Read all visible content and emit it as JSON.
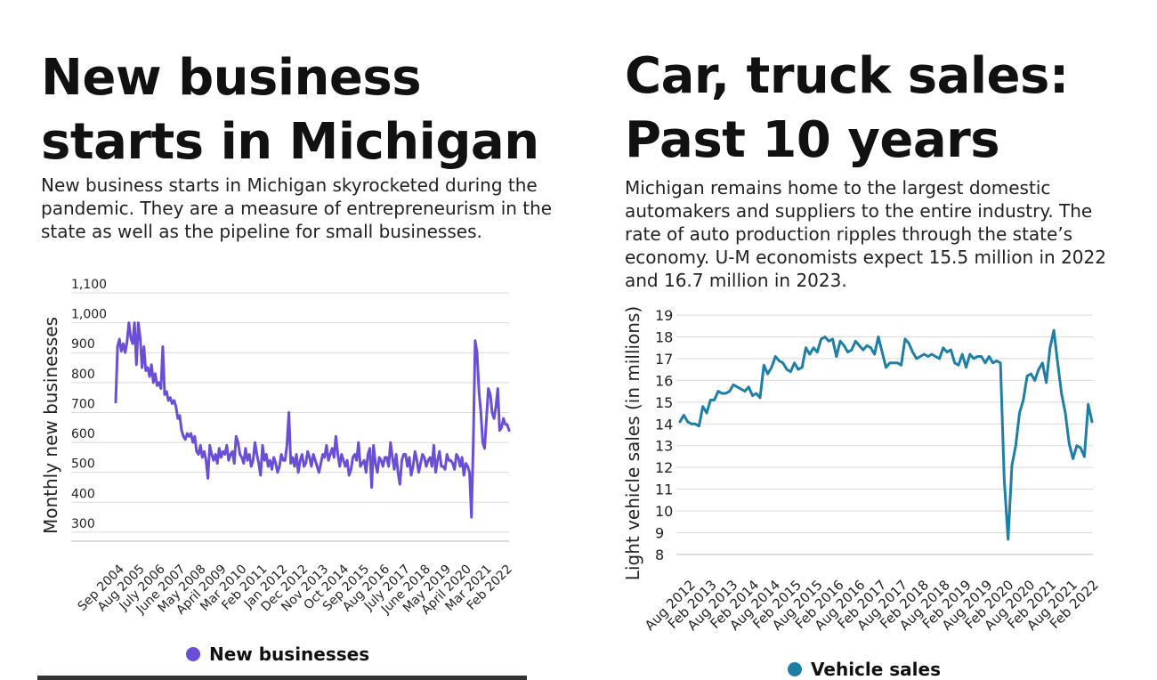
{
  "left": {
    "title": "New business starts in Michigan",
    "subtitle": "New business starts in Michigan skyrocketed during the pandemic. They are a measure of entrepreneurism in the state as well as the pipeline for small businesses.",
    "legend": "New businesses",
    "color": "#6a4fd6",
    "chart_data": {
      "type": "line",
      "title": "New business starts in Michigan",
      "ylabel": "Monthly new businesses",
      "xlabel": "",
      "ylim": [
        270,
        1100
      ],
      "yticks": [
        "300",
        "400",
        "500",
        "600",
        "700",
        "800",
        "900",
        "1,000",
        "1,100"
      ],
      "ytick_values": [
        300,
        400,
        500,
        600,
        700,
        800,
        900,
        1000,
        1100
      ],
      "xticks": [
        "Sep 2004",
        "Aug 2005",
        "July 2006",
        "June 2007",
        "May 2008",
        "April 2009",
        "Mar 2010",
        "Feb 2011",
        "Jan 2012",
        "Dec 2012",
        "Nov 2013",
        "Oct 2014",
        "Sep 2015",
        "Aug 2016",
        "July 2017",
        "June 2018",
        "May 2019",
        "April 2020",
        "Mar 2021",
        "Feb 2022"
      ],
      "series": [
        {
          "name": "New businesses",
          "x_start": "Sep 2004",
          "values": [
            735,
            920,
            945,
            905,
            930,
            900,
            935,
            1000,
            950,
            930,
            1000,
            860,
            1000,
            950,
            850,
            920,
            840,
            850,
            820,
            860,
            800,
            830,
            790,
            800,
            780,
            920,
            760,
            770,
            740,
            750,
            730,
            740,
            720,
            680,
            690,
            640,
            620,
            610,
            630,
            620,
            630,
            600,
            620,
            570,
            560,
            590,
            550,
            570,
            540,
            480,
            590,
            560,
            540,
            560,
            530,
            580,
            550,
            570,
            560,
            590,
            540,
            560,
            570,
            530,
            620,
            600,
            560,
            550,
            530,
            580,
            540,
            560,
            520,
            540,
            600,
            560,
            530,
            490,
            590,
            540,
            560,
            520,
            540,
            510,
            550,
            530,
            500,
            520,
            560,
            540,
            540,
            590,
            700,
            530,
            550,
            520,
            560,
            500,
            540,
            560,
            520,
            530,
            570,
            550,
            520,
            560,
            540,
            520,
            500,
            530,
            560,
            550,
            590,
            540,
            560,
            580,
            550,
            620,
            560,
            520,
            560,
            540,
            520,
            540,
            490,
            510,
            550,
            560,
            540,
            600,
            520,
            530,
            540,
            500,
            560,
            580,
            450,
            590,
            530,
            500,
            550,
            540,
            520,
            550,
            550,
            520,
            600,
            550,
            510,
            560,
            500,
            460,
            540,
            560,
            560,
            520,
            550,
            490,
            520,
            570,
            540,
            500,
            530,
            560,
            550,
            520,
            540,
            550,
            520,
            590,
            500,
            540,
            570,
            520,
            520,
            510,
            560,
            540,
            540,
            530,
            510,
            560,
            550,
            520,
            550,
            490,
            530,
            520,
            500,
            350,
            600,
            940,
            900,
            770,
            700,
            600,
            580,
            680,
            780,
            760,
            700,
            680,
            720,
            780,
            640,
            650,
            680,
            660,
            660,
            640
          ]
        }
      ]
    }
  },
  "right": {
    "title": "Car, truck sales: Past 10 years",
    "subtitle": "Michigan remains home to the largest domestic automakers and suppliers to the entire industry. The rate of auto production ripples through the state’s economy. U-M economists expect 15.5 million in 2022 and 16.7 million in 2023.",
    "legend": "Vehicle sales",
    "color": "#1e7fa6",
    "chart_data": {
      "type": "line",
      "title": "Car, truck sales: Past 10 years",
      "ylabel": "Light vehicle sales (in millions)",
      "xlabel": "",
      "ylim": [
        8,
        19
      ],
      "yticks": [
        "8",
        "9",
        "10",
        "11",
        "12",
        "13",
        "14",
        "15",
        "16",
        "17",
        "18",
        "19"
      ],
      "ytick_values": [
        8,
        9,
        10,
        11,
        12,
        13,
        14,
        15,
        16,
        17,
        18,
        19
      ],
      "xticks": [
        "Aug 2012",
        "Feb 2013",
        "Aug 2013",
        "Feb 2014",
        "Aug 2014",
        "Feb 2015",
        "Aug 2015",
        "Feb 2016",
        "Aug 2016",
        "Feb 2017",
        "Aug 2017",
        "Feb 2018",
        "Aug 2018",
        "Feb 2019",
        "Aug 2019",
        "Feb 2020",
        "Aug 2020",
        "Feb 2021",
        "Aug 2021",
        "Feb 2022"
      ],
      "series": [
        {
          "name": "Vehicle sales",
          "x_start": "Aug 2012",
          "values": [
            14.1,
            14.4,
            14.1,
            14.0,
            14.0,
            13.9,
            14.8,
            14.5,
            15.1,
            15.1,
            15.5,
            15.4,
            15.4,
            15.5,
            15.8,
            15.7,
            15.6,
            15.5,
            15.7,
            15.3,
            15.4,
            15.2,
            16.7,
            16.3,
            16.6,
            17.1,
            16.9,
            16.8,
            16.5,
            16.4,
            16.8,
            16.5,
            16.6,
            17.5,
            17.2,
            17.5,
            17.3,
            17.9,
            18.0,
            17.8,
            17.9,
            17.1,
            17.8,
            17.6,
            17.3,
            17.4,
            17.8,
            17.6,
            17.4,
            17.6,
            17.5,
            17.2,
            18.0,
            17.3,
            16.6,
            16.8,
            16.8,
            16.8,
            16.7,
            17.9,
            17.7,
            17.3,
            17.0,
            17.1,
            17.2,
            17.1,
            17.2,
            17.1,
            17.0,
            17.5,
            17.3,
            17.4,
            16.8,
            16.7,
            17.2,
            16.6,
            17.2,
            17.0,
            17.1,
            17.1,
            16.8,
            17.1,
            16.8,
            16.9,
            16.8,
            11.4,
            8.7,
            12.1,
            13.0,
            14.5,
            15.1,
            16.2,
            16.3,
            16.0,
            16.5,
            16.8,
            15.9,
            17.5,
            18.3,
            16.8,
            15.4,
            14.5,
            13.1,
            12.4,
            13.0,
            12.9,
            12.5,
            14.9,
            14.1
          ]
        }
      ]
    }
  }
}
